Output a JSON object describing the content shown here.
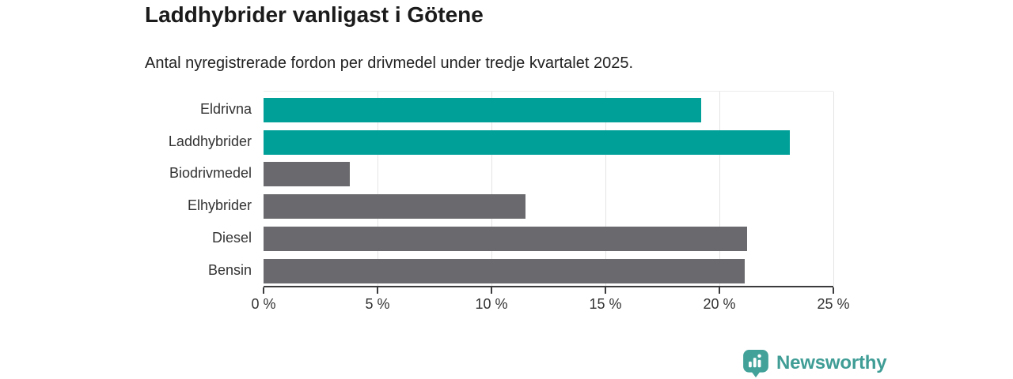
{
  "header": {
    "title": "Laddhybrider vanligast i Götene",
    "subtitle": "Antal nyregistrerade fordon per drivmedel under tredje kvartalet 2025."
  },
  "chart_data": {
    "type": "bar",
    "orientation": "horizontal",
    "title": "Laddhybrider vanligast i Götene",
    "subtitle": "Antal nyregistrerade fordon per drivmedel under tredje kvartalet 2025.",
    "categories": [
      "Eldrivna",
      "Laddhybrider",
      "Biodrivmedel",
      "Elhybrider",
      "Diesel",
      "Bensin"
    ],
    "values": [
      19.2,
      23.1,
      3.8,
      11.5,
      21.2,
      21.1
    ],
    "unit": "%",
    "bar_colors": [
      "#00a099",
      "#00a099",
      "#6a6a6e",
      "#6a6a6e",
      "#6a6a6e",
      "#6a6a6e"
    ],
    "highlight_color": "#00a099",
    "default_color": "#6a6a6e",
    "xlim": [
      0,
      25
    ],
    "x_tick_values": [
      0,
      5,
      10,
      15,
      20,
      25
    ],
    "x_tick_labels": [
      "0 %",
      "5 %",
      "10 %",
      "15 %",
      "20 %",
      "25 %"
    ],
    "grid": true,
    "legend": "none",
    "xlabel": "",
    "ylabel": ""
  },
  "branding": {
    "logo_text": "Newsworthy",
    "logo_text_color": "#3f9d96",
    "logo_icon_color": "#42a29a",
    "logo_icon_name": "newsworthy-chart-bubble-icon"
  }
}
